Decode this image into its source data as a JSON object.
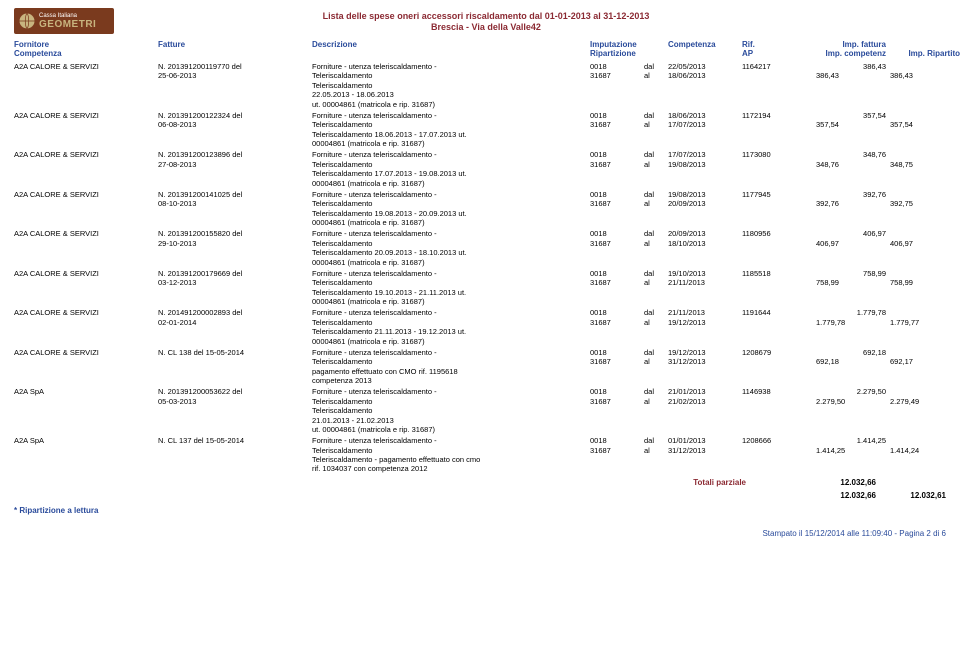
{
  "header": {
    "logo_top": "Cassa Italiana",
    "logo_bottom": "GEOMETRI",
    "title_line1": "Lista delle spese oneri accessori riscaldamento dal 01-01-2013 al 31-12-2013",
    "title_line2": "Brescia - Via della Valle42"
  },
  "col_hdr": {
    "fornitore": "Fornitore",
    "fatture": "Fatture",
    "descrizione": "Descrizione",
    "imputazione": "Imputazione",
    "competenza_dt": "Competenza",
    "rif": "Rif.",
    "imp_fattura": "Imp. fattura",
    "competenza": "Competenza",
    "ripartizione": "Ripartizione",
    "ap": "AP",
    "imp_competenz": "Imp. competenz",
    "imp_ripartito": "Imp. Ripartito"
  },
  "palette": {
    "accent": "#8b2a33",
    "header_blue": "#2a4b9b",
    "text": "#000000",
    "background": "#ffffff",
    "logo_bg": "#7a3a1e"
  },
  "rows": [
    {
      "fornitore": "A2A CALORE & SERVIZI",
      "fatt1": "N. 201391200119770 del",
      "fatt2": "25-06-2013",
      "desc1": "Forniture - utenza teleriscaldamento -",
      "desc2": "Teleriscaldamento",
      "desc3": "Teleriscaldamento",
      "desc4": "22.05.2013 - 18.06.2013",
      "desc5": "ut. 00004861 (matricola e rip. 31687)",
      "code1": "0018",
      "dal": "dal",
      "date1": "22/05/2013",
      "rif": "1164217",
      "amt1": "386,43",
      "code2": "31687",
      "al": "al",
      "date2": "18/06/2013",
      "amt2": "386,43",
      "amt3": "386,43"
    },
    {
      "fornitore": "A2A CALORE & SERVIZI",
      "fatt1": "N. 201391200122324 del",
      "fatt2": "06-08-2013",
      "desc1": "Forniture - utenza teleriscaldamento -",
      "desc2": "Teleriscaldamento",
      "desc3": "Teleriscaldamento 18.06.2013 - 17.07.2013 ut.",
      "desc4": "00004861 (matricola e rip. 31687)",
      "desc5": "",
      "code1": "0018",
      "dal": "dal",
      "date1": "18/06/2013",
      "rif": "1172194",
      "amt1": "357,54",
      "code2": "31687",
      "al": "al",
      "date2": "17/07/2013",
      "amt2": "357,54",
      "amt3": "357,54"
    },
    {
      "fornitore": "A2A CALORE & SERVIZI",
      "fatt1": "N. 201391200123896 del",
      "fatt2": "27-08-2013",
      "desc1": "Forniture - utenza teleriscaldamento -",
      "desc2": "Teleriscaldamento",
      "desc3": "Teleriscaldamento 17.07.2013 - 19.08.2013 ut.",
      "desc4": "00004861 (matricola e rip. 31687)",
      "desc5": "",
      "code1": "0018",
      "dal": "dal",
      "date1": "17/07/2013",
      "rif": "1173080",
      "amt1": "348,76",
      "code2": "31687",
      "al": "al",
      "date2": "19/08/2013",
      "amt2": "348,76",
      "amt3": "348,75"
    },
    {
      "fornitore": "A2A CALORE & SERVIZI",
      "fatt1": "N. 201391200141025 del",
      "fatt2": "08-10-2013",
      "desc1": "Forniture - utenza teleriscaldamento -",
      "desc2": "Teleriscaldamento",
      "desc3": "Teleriscaldamento 19.08.2013 - 20.09.2013 ut.",
      "desc4": "00004861 (matricola e rip. 31687)",
      "desc5": "",
      "code1": "0018",
      "dal": "dal",
      "date1": "19/08/2013",
      "rif": "1177945",
      "amt1": "392,76",
      "code2": "31687",
      "al": "al",
      "date2": "20/09/2013",
      "amt2": "392,76",
      "amt3": "392,75"
    },
    {
      "fornitore": "A2A CALORE & SERVIZI",
      "fatt1": "N. 201391200155820 del",
      "fatt2": "29-10-2013",
      "desc1": "Forniture - utenza teleriscaldamento -",
      "desc2": "Teleriscaldamento",
      "desc3": "Teleriscaldamento 20.09.2013 - 18.10.2013 ut.",
      "desc4": "00004861 (matricola e rip. 31687)",
      "desc5": "",
      "code1": "0018",
      "dal": "dal",
      "date1": "20/09/2013",
      "rif": "1180956",
      "amt1": "406,97",
      "code2": "31687",
      "al": "al",
      "date2": "18/10/2013",
      "amt2": "406,97",
      "amt3": "406,97"
    },
    {
      "fornitore": "A2A CALORE & SERVIZI",
      "fatt1": "N. 201391200179669 del",
      "fatt2": "03-12-2013",
      "desc1": "Forniture - utenza teleriscaldamento -",
      "desc2": "Teleriscaldamento",
      "desc3": "Teleriscaldamento 19.10.2013 - 21.11.2013 ut.",
      "desc4": "00004861 (matricola e rip. 31687)",
      "desc5": "",
      "code1": "0018",
      "dal": "dal",
      "date1": "19/10/2013",
      "rif": "1185518",
      "amt1": "758,99",
      "code2": "31687",
      "al": "al",
      "date2": "21/11/2013",
      "amt2": "758,99",
      "amt3": "758,99"
    },
    {
      "fornitore": "A2A CALORE & SERVIZI",
      "fatt1": "N. 201491200002893 del",
      "fatt2": "02-01-2014",
      "desc1": "Forniture - utenza teleriscaldamento -",
      "desc2": "Teleriscaldamento",
      "desc3": "Teleriscaldamento 21.11.2013 - 19.12.2013 ut.",
      "desc4": "00004861 (matricola e rip. 31687)",
      "desc5": "",
      "code1": "0018",
      "dal": "dal",
      "date1": "21/11/2013",
      "rif": "1191644",
      "amt1": "1.779,78",
      "code2": "31687",
      "al": "al",
      "date2": "19/12/2013",
      "amt2": "1.779,78",
      "amt3": "1.779,77"
    },
    {
      "fornitore": "A2A CALORE & SERVIZI",
      "fatt1": "N. CL 138 del 15-05-2014",
      "fatt2": "",
      "desc1": "Forniture - utenza teleriscaldamento -",
      "desc2": "Teleriscaldamento",
      "desc3": "pagamento effettuato con CMO rif. 1195618",
      "desc4": "competenza 2013",
      "desc5": "",
      "code1": "0018",
      "dal": "dal",
      "date1": "19/12/2013",
      "rif": "1208679",
      "amt1": "692,18",
      "code2": "31687",
      "al": "al",
      "date2": "31/12/2013",
      "amt2": "692,18",
      "amt3": "692,17"
    },
    {
      "fornitore": "A2A SpA",
      "fatt1": "N. 201391200053622 del",
      "fatt2": "05-03-2013",
      "desc1": "Forniture - utenza teleriscaldamento -",
      "desc2": "Teleriscaldamento",
      "desc3": "Teleriscaldamento",
      "desc4": "21.01.2013 - 21.02.2013",
      "desc5": "ut. 00004861 (matricola e rip. 31687)",
      "code1": "0018",
      "dal": "dal",
      "date1": "21/01/2013",
      "rif": "1146938",
      "amt1": "2.279,50",
      "code2": "31687",
      "al": "al",
      "date2": "21/02/2013",
      "amt2": "2.279,50",
      "amt3": "2.279,49"
    },
    {
      "fornitore": "A2A SpA",
      "fatt1": "N. CL 137 del 15-05-2014",
      "fatt2": "",
      "desc1": "Forniture - utenza teleriscaldamento -",
      "desc2": "Teleriscaldamento",
      "desc3": "Teleriscaldamento - pagamento effettuato con cmo",
      "desc4": "rif. 1034037 con competenza 2012",
      "desc5": "",
      "code1": "0018",
      "dal": "dal",
      "date1": "01/01/2013",
      "rif": "1208666",
      "amt1": "1.414,25",
      "code2": "31687",
      "al": "al",
      "date2": "31/12/2013",
      "amt2": "1.414,25",
      "amt3": "1.414,24"
    }
  ],
  "totals": {
    "label": "Totali parziale",
    "val1": "12.032,66",
    "val2a": "12.032,66",
    "val2b": "12.032,61"
  },
  "footnote": "* Ripartizione a lettura",
  "footer": "Stampato il 15/12/2014 alle 11:09:40  -  Pagina 2 di 6"
}
